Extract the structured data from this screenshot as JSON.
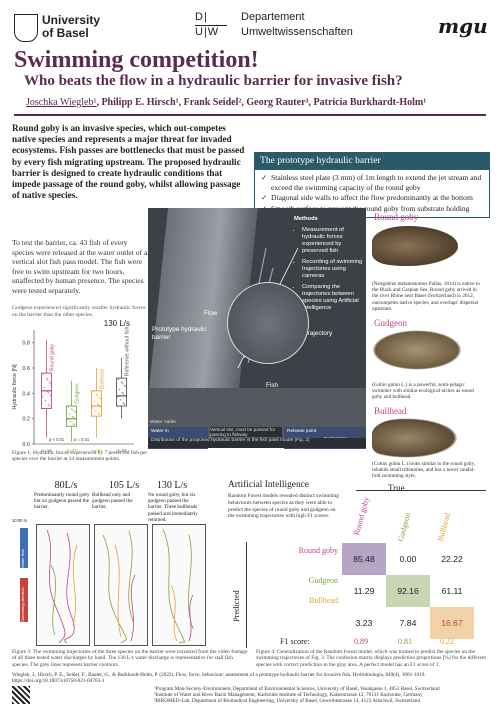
{
  "header": {
    "uni_line1": "University",
    "uni_line2": "of Basel",
    "dept_du": "D|",
    "dept_uw": "U|W",
    "dept_line1": "Departement",
    "dept_line2": "Umweltwissenschaften",
    "mgu": "mgu"
  },
  "title": "Swimming competition!",
  "subtitle": "Who beats the flow in a hydraulic barrier for invasive fish?",
  "authors": {
    "first": "Joschka Wiegleb¹",
    "rest": ", Philipp E. Hirsch¹, Frank Seidel², Georg Rauter³, Patricia Burkhardt-Holm¹"
  },
  "intro": "Round goby is an invasive species, which out-competes native species and represents a major threat for invaded ecosystems. Fish passes are bottlenecks that must be passed by every fish migrating upstream. The proposed hydraulic barrier is designed to create hydraulic conditions that impede passage of the round goby, whilst allowing passage of native species.",
  "test_text": "To test the barrier, ca. 43 fish of every species were released at the water outlet of a vertical slot fish pass model. The fish were free to swim upstream for two hours, unaffected by human presence. The species were tested separately.",
  "prototype": {
    "heading": "The prototype hydraulic barrier",
    "items": [
      "Stainless steel plate (3 mm) of 1m length to extend the jet stream and exceed the swimming capacity of the round goby",
      "Diagonal side walls to affect the flow predominantly at the bottom",
      "Smooth surface to prevent the round goby from substrate holding"
    ]
  },
  "photo": {
    "methods_title": "Methods",
    "methods": [
      "Measurement of hydraulic forces experienced by preserved fish",
      "Recording of swimming trajectories using cameras",
      "Comparing the trajectories between species using Artificial Intelligence"
    ],
    "label_barrier": "Prototype hydraulic barrier",
    "label_flow": "Flow",
    "label_trajectory": "Trajectory",
    "label_fish": "Fish",
    "label_water_outlet": "Water outlet",
    "label_water_inlet": "Water inlet",
    "label_water_in": "Water in",
    "label_release": "Release point",
    "label_pass": "Pedestrian Passage",
    "label_strip_mid": "Vertical slot, must be passed for passing to fishway",
    "strip_text": "Distribution of the proposed hydraulic barrier in the fish pass model (Fig. 2)"
  },
  "fish": [
    {
      "name": "Round goby",
      "caption": "(Neogobius melanostomus Pallas, 1814) is native to the Black and Caspian Sea. Round goby arrived in the river Rhine near Basel (Switzerland) in 2012, outcompetes native species, and overlaps' dispersal upstream."
    },
    {
      "name": "Gudgeon",
      "caption": "(Gobio gobio L.) is a powerful, semi-pelagic swimmer with similar ecological niches as round goby and bullhead."
    },
    {
      "name": "Bullhead",
      "caption": "(Cottus gobio L.) looks similar to the round goby, inhabits small tributaries, and has a lower caudal-fold swimming style."
    }
  ],
  "boxplot": {
    "caption_top": "Gudgeon experienced significantly smaller hydraulic forces on the barrier than the other species.",
    "flow_label": "130 L/s",
    "ylabel": "Hydraulic force [N]",
    "yticks": [
      "0.8",
      "0.6",
      "0.4",
      "0.2",
      "0.0"
    ],
    "box_labels": [
      "Round goby",
      "Gudgeon",
      "Bullhead",
      "Reference without fish"
    ],
    "sig": [
      "p < 0.01",
      "p = 0.01"
    ],
    "n_labels": [
      "n=44",
      "n=37",
      "n=38",
      "n=34"
    ],
    "caption": "Figure 1: Hydraulic forces experienced by 7 preserved fish per species over the barrier at 14 measurement points."
  },
  "chart_data": {
    "type": "box",
    "title": "130 L/s",
    "ylabel": "Hydraulic force [N]",
    "ylim": [
      0,
      0.9
    ],
    "categories": [
      "Round goby",
      "Gudgeon",
      "Bullhead",
      "Reference without fish"
    ],
    "colors": [
      "#c0438a",
      "#7aa63c",
      "#e8a230",
      "#555555"
    ],
    "boxes": [
      {
        "min": 0.05,
        "q1": 0.28,
        "median": 0.42,
        "q3": 0.56,
        "max": 0.82
      },
      {
        "min": 0.02,
        "q1": 0.14,
        "median": 0.2,
        "q3": 0.3,
        "max": 0.5
      },
      {
        "min": 0.05,
        "q1": 0.22,
        "median": 0.3,
        "q3": 0.42,
        "max": 0.6
      },
      {
        "min": 0.2,
        "q1": 0.3,
        "median": 0.38,
        "q3": 0.52,
        "max": 0.68
      }
    ]
  },
  "trajectories": {
    "columns": [
      {
        "flow": "80L/s",
        "text": "Predominantly round goby but no gudgeon passed the barrier."
      },
      {
        "flow": "105 L/s",
        "text": "Bullhead only and gudgeon passed the barrier."
      },
      {
        "flow": "130 L/s",
        "text": "No round goby, but six gudgeon passed the barrier. Three bullheads passed and immediately returned."
      }
    ],
    "left_labels": [
      "10:00 m",
      "Water flow",
      "Swimming direction"
    ],
    "caption": "Figure 3: The swimming trajectories of the three species on the barrier were extracted from the video footage of all three tested water discharges by hand. The 130 L/s water discharge is representative for stall fish species. The grey lines represent barrier contours."
  },
  "ai": {
    "heading": "Artificial Intelligence",
    "text": "Random Forest models revealed distinct swimming behaviours between species as they were able to predict the species of round goby and gudgeon on the swimming trajectories with high F1 scores.",
    "true_label": "True",
    "pred_label": "Predicted",
    "cols": [
      "Round goby",
      "Gudgeon",
      "Bullhead"
    ],
    "rows": [
      "Round goby",
      "Gudgeon",
      "Bullhead"
    ],
    "matrix": [
      [
        "85.48",
        "0.00",
        "22.22"
      ],
      [
        "11.29",
        "92.16",
        "61.11"
      ],
      [
        "3.23",
        "7.84",
        "16.67"
      ]
    ],
    "f1_label": "F1 score:",
    "f1": [
      "0.89",
      "0.81",
      "0.22"
    ],
    "caption": "Figure 4: Generalization of the Random Forest model, which was trained to predict the species on the swimming trajectories of Fig. 3. The confusion matrix displays prediction proportions [%] for the different species with correct prediction in the gray area. A perfect model has an F1 score of 1."
  },
  "footer": {
    "ref": "Wiegleb, J., Hirsch, P. E., Seidel, F., Rauter, G., & Burkhardt-Holm, P. (2022). Flow, force, behaviour: assessment of a prototype hydraulic barrier for invasive fish. Hydrobiologia, 849(4), 1001-1019. https://doi.org/10.1007/s10750-021-04763-1",
    "aff1": "¹Program Man-Society-Environment, Department of Environmental Sciences, University of Basel, Vesalgasse 1, 4051 Basel, Switzerland",
    "aff2": "²Institute of Water and River Basin Management, Karlsruhe Institute of Technology, Kaiserstrasse 12, 76131 Karlsruhe, Germany",
    "aff3": "³BIROMED-Lab, Department of Biomedical Engineering, University of Basel, Gewerbestrasse 14, 4123 Allschwil, Switzerland"
  }
}
